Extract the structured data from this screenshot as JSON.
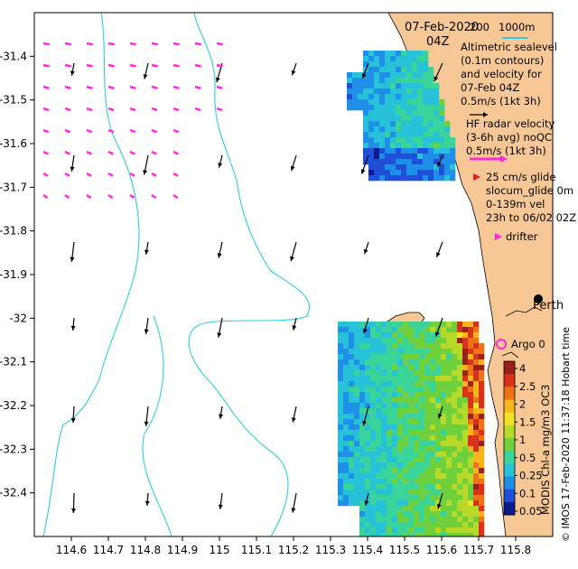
{
  "header": {
    "date": "07-Feb-2020",
    "time": "04Z",
    "scale_200": "200",
    "scale_1000": "1000m"
  },
  "legend": {
    "altimetric_line1": "Altimetric sealevel",
    "altimetric_line2": "(0.1m contours)",
    "altimetric_line3": "and velocity for",
    "altimetric_line4": "07-Feb 04Z",
    "altimetric_line5": "0.5m/s (1kt 3h)",
    "hf_line1": "HF radar velocity",
    "hf_line2": "(3-6h avg) noQC",
    "hf_line3": "0.5m/s (1kt 3h)",
    "glider_line1": "25 cm/s glide",
    "glider_line2": "slocum_glide 0m",
    "glider_line3": "0-139m vel",
    "glider_line4": "23h to 06/02 02Z",
    "drifter": "drifter",
    "argo": "Argo 0",
    "place": "Perth"
  },
  "colorbar": {
    "title": "MODIS Chl-a mg/m3 OC3",
    "ticks": [
      "4",
      "2.5",
      "2",
      "1.5",
      "1",
      "0.5",
      "0.25",
      "0.1",
      "0.05"
    ],
    "colors": [
      "#0b1a8c",
      "#1e4fd6",
      "#1f8fe8",
      "#27c2d8",
      "#3ad39a",
      "#6fcf3c",
      "#b7d92a",
      "#f2e325",
      "#f7b51d",
      "#ee7317",
      "#d8321a",
      "#9b1f1a"
    ]
  },
  "credit": "© IMOS 17-Feb-2020 11:37:18 Hobart time",
  "axes": {
    "x_ticks": [
      "114.6",
      "114.7",
      "114.8",
      "114.9",
      "115",
      "115.1",
      "115.2",
      "115.3",
      "115.4",
      "115.5",
      "115.6",
      "115.7",
      "115.8"
    ],
    "y_ticks": [
      "-31.4",
      "-31.5",
      "-31.6",
      "-31.7",
      "-31.8",
      "-31.9",
      "-32",
      "-32.1",
      "-32.2",
      "-32.3",
      "-32.4"
    ],
    "lon_range": [
      114.5,
      115.9
    ],
    "lat_range": [
      -32.5,
      -31.3
    ]
  },
  "colors": {
    "land": "#f7c896",
    "bathymetry": "#2ad0e0",
    "hf_radar": "#ff2bd9",
    "argo": "#ff2bd9",
    "glider": "#e81c1c",
    "axis": "#000000"
  }
}
